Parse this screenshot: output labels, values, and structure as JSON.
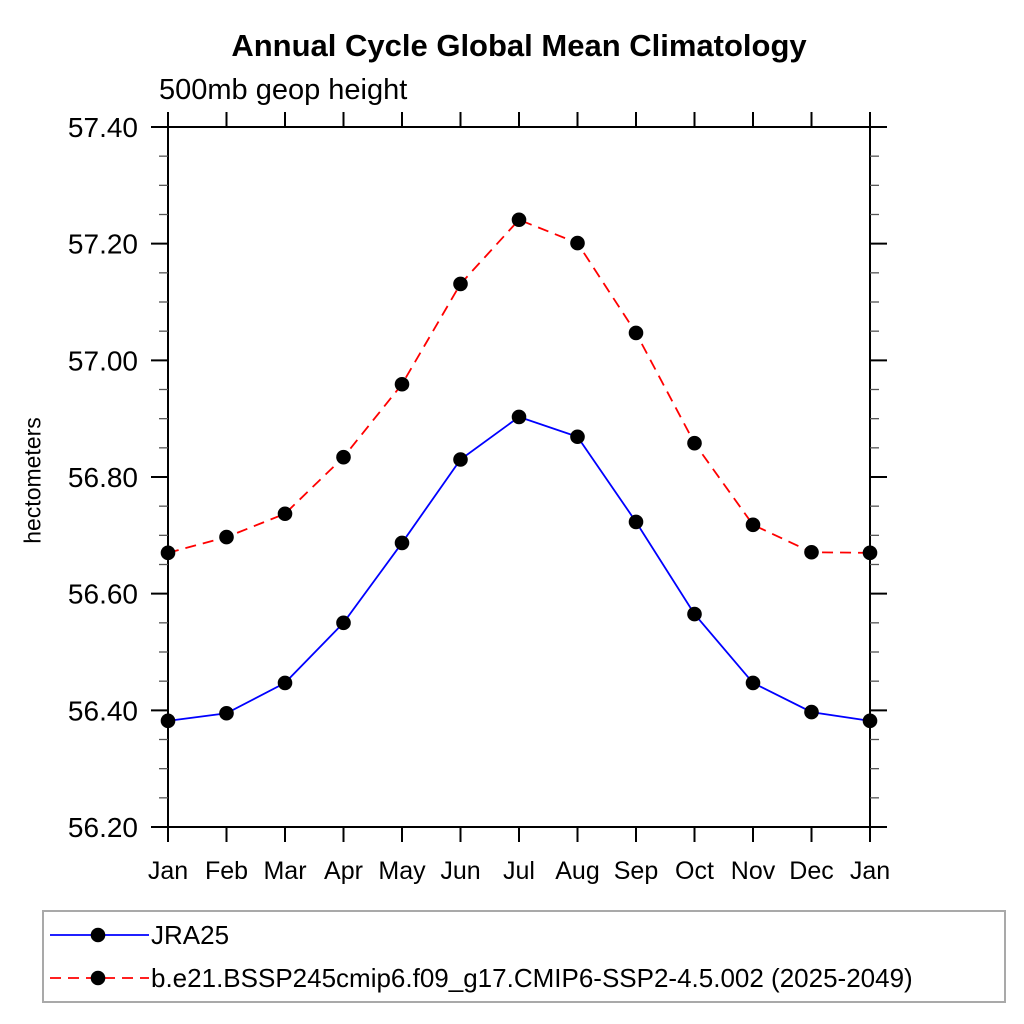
{
  "chart_data": {
    "type": "line",
    "title": "Annual Cycle Global Mean Climatology",
    "subtitle": "500mb geop height",
    "ylabel": "hectometers",
    "xlabel": "",
    "categories": [
      "Jan",
      "Feb",
      "Mar",
      "Apr",
      "May",
      "Jun",
      "Jul",
      "Aug",
      "Sep",
      "Oct",
      "Nov",
      "Dec",
      "Jan"
    ],
    "ylim": [
      56.2,
      57.4
    ],
    "y_major_step": 0.2,
    "y_minor_step": 0.05,
    "y_tick_labels": [
      "56.20",
      "56.40",
      "56.60",
      "56.80",
      "57.00",
      "57.20",
      "57.40"
    ],
    "grid": false,
    "legend_position": "bottom-left-box",
    "series": [
      {
        "name": "JRA25",
        "color": "#0000ff",
        "style": "solid",
        "marker": "filled-circle",
        "marker_color": "#000000",
        "values": [
          56.382,
          56.395,
          56.447,
          56.55,
          56.687,
          56.83,
          56.903,
          56.869,
          56.723,
          56.565,
          56.447,
          56.397,
          56.382
        ]
      },
      {
        "name": "b.e21.BSSP245cmip6.f09_g17.CMIP6-SSP2-4.5.002 (2025-2049)",
        "color": "#ff0000",
        "style": "dashed",
        "marker": "filled-circle",
        "marker_color": "#000000",
        "values": [
          56.67,
          56.697,
          56.737,
          56.834,
          56.959,
          57.131,
          57.241,
          57.201,
          57.047,
          56.858,
          56.718,
          56.671,
          56.67
        ]
      }
    ]
  }
}
